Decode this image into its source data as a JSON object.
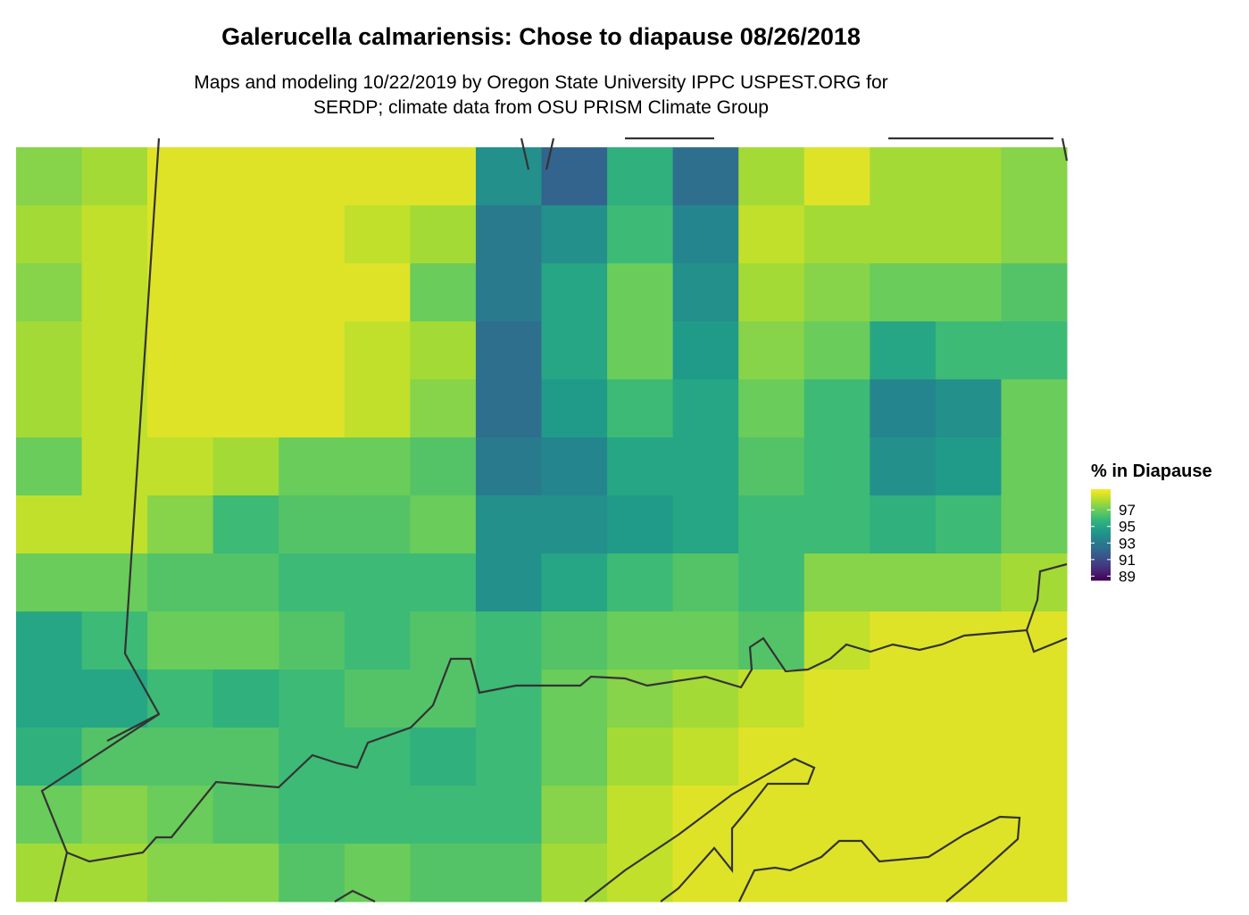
{
  "chart_data": {
    "type": "raster",
    "title": "Galerucella calmariensis: Chose to diapause 08/26/2018",
    "subtitle": [
      "Maps and modeling 10/22/2019 by Oregon State University IPPC USPEST.ORG for",
      "SERDP; climate data from OSU PRISM Climate Group"
    ],
    "legend_title": "% in Diapause",
    "colormap": "viridis",
    "clim": [
      88.5,
      99.5
    ],
    "ticks": [
      89,
      91,
      93,
      95,
      97
    ],
    "values": [
      [
        97.5,
        98,
        99,
        99,
        99,
        99,
        99,
        94,
        92,
        95.5,
        92.5,
        98,
        99,
        98,
        98,
        97.5
      ],
      [
        98,
        98.5,
        99,
        99,
        99,
        98.5,
        98,
        93,
        94,
        96,
        93.5,
        98.5,
        98,
        98,
        98,
        97.5
      ],
      [
        97.5,
        98.5,
        99,
        99,
        99,
        99,
        97,
        93,
        95,
        97,
        94,
        98,
        97.5,
        97,
        97,
        96.5
      ],
      [
        98,
        98.5,
        99,
        99,
        99,
        98.5,
        98,
        92.5,
        95,
        97,
        94.5,
        97.5,
        97,
        95,
        96,
        96
      ],
      [
        98,
        98.5,
        99,
        99,
        99,
        98.5,
        97.5,
        92.5,
        94.5,
        96,
        95,
        97,
        96,
        93.5,
        94,
        97
      ],
      [
        97,
        98.5,
        98.5,
        98,
        97,
        97,
        96.5,
        93,
        93.5,
        95,
        95,
        96.5,
        96,
        94,
        94.5,
        97
      ],
      [
        98.5,
        98.5,
        97.5,
        96,
        96.5,
        96.5,
        97,
        94,
        94,
        94.5,
        95,
        96,
        96,
        95.5,
        96,
        97
      ],
      [
        97,
        97,
        96.5,
        96.5,
        96,
        96,
        96,
        94,
        95,
        96,
        96.5,
        96,
        97.5,
        97.5,
        97.5,
        98
      ],
      [
        95,
        96,
        97,
        97,
        96.5,
        96,
        96.5,
        96,
        96.5,
        97,
        97,
        96.5,
        98.5,
        99,
        99,
        99
      ],
      [
        95,
        95,
        96,
        95.5,
        96,
        96.5,
        96.5,
        96,
        97,
        97.5,
        98,
        98.5,
        99,
        99,
        99,
        99
      ],
      [
        95.5,
        96.5,
        96.5,
        96.5,
        96,
        96,
        95.5,
        96,
        97,
        98,
        98.5,
        99,
        99,
        99,
        99,
        99
      ],
      [
        97,
        97.5,
        97,
        96.5,
        96,
        96,
        96,
        96,
        97.5,
        98.5,
        99,
        99,
        99,
        99,
        99,
        99
      ],
      [
        98,
        98,
        97.5,
        97.5,
        96.5,
        97,
        96.5,
        96.5,
        98,
        98.5,
        99,
        99,
        99,
        99,
        99,
        99
      ]
    ]
  }
}
